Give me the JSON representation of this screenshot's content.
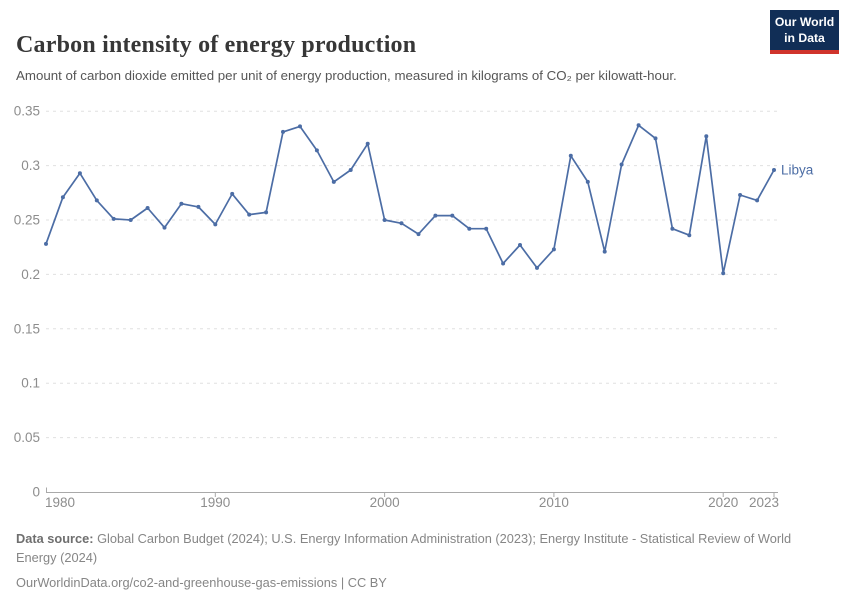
{
  "header": {
    "title": "Carbon intensity of energy production",
    "subtitle": "Amount of carbon dioxide emitted per unit of energy production, measured in kilograms of CO₂ per kilowatt-hour.",
    "logo": {
      "line1": "Our World",
      "line2": "in Data",
      "bg_color": "#112e56",
      "accent_color": "#d0342c"
    }
  },
  "chart_data": {
    "type": "line",
    "title": "Carbon intensity of energy production",
    "ylabel": "",
    "xlabel": "",
    "unit": "kilograms of CO₂ per kilowatt-hour",
    "ylim": [
      0,
      0.35
    ],
    "yticks": [
      0,
      0.05,
      0.1,
      0.15,
      0.2,
      0.25,
      0.3,
      0.35
    ],
    "ytick_labels": [
      "0",
      "0.05",
      "0.1",
      "0.15",
      "0.2",
      "0.25",
      "0.3",
      "0.35"
    ],
    "xticks": [
      1980,
      1990,
      2000,
      2010,
      2020,
      2023
    ],
    "grid": "horizontal-dashed",
    "legend_position": "end-of-line-label",
    "series": [
      {
        "name": "Libya",
        "color": "#4c6da5",
        "x": [
          1980,
          1981,
          1982,
          1983,
          1984,
          1985,
          1986,
          1987,
          1988,
          1989,
          1990,
          1991,
          1992,
          1993,
          1994,
          1995,
          1996,
          1997,
          1998,
          1999,
          2000,
          2001,
          2002,
          2003,
          2004,
          2005,
          2006,
          2007,
          2008,
          2009,
          2010,
          2011,
          2012,
          2013,
          2014,
          2015,
          2016,
          2017,
          2018,
          2019,
          2020,
          2021,
          2022,
          2023
        ],
        "values": [
          0.228,
          0.271,
          0.293,
          0.268,
          0.251,
          0.25,
          0.261,
          0.243,
          0.265,
          0.262,
          0.246,
          0.274,
          0.255,
          0.257,
          0.331,
          0.336,
          0.314,
          0.285,
          0.296,
          0.32,
          0.25,
          0.247,
          0.237,
          0.254,
          0.254,
          0.242,
          0.242,
          0.21,
          0.227,
          0.206,
          0.223,
          0.309,
          0.285,
          0.221,
          0.301,
          0.337,
          0.325,
          0.242,
          0.236,
          0.327,
          0.201,
          0.273,
          0.268,
          0.296
        ]
      }
    ]
  },
  "footer": {
    "source_label": "Data source:",
    "source_text": " Global Carbon Budget (2024); U.S. Energy Information Administration (2023); Energy Institute - Statistical Review of World Energy (2024)",
    "link_text": "OurWorldinData.org/co2-and-greenhouse-gas-emissions | CC BY"
  }
}
